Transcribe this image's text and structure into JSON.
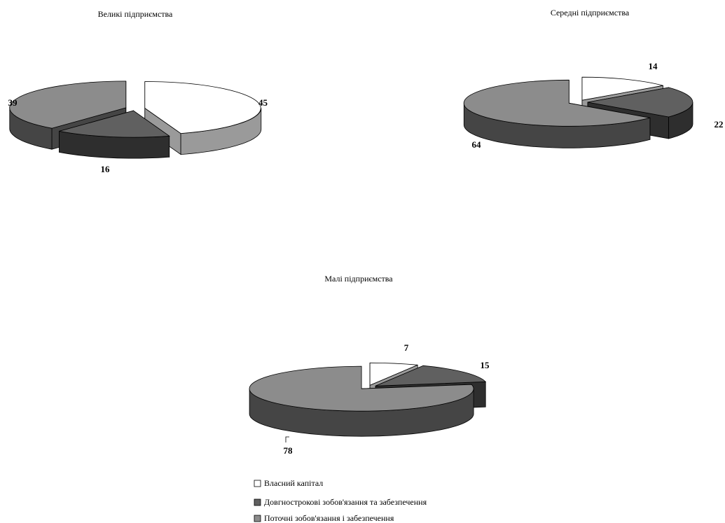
{
  "colors": {
    "equity": "#ffffff",
    "long_term": "#606060",
    "current": "#8c8c8c",
    "outline": "#000000"
  },
  "chart_data": [
    {
      "type": "pie",
      "title": "Великі підприємства",
      "categories": [
        "Власний капітал",
        "Довгнострокові зобов'язання та забезпечення",
        "Поточні зобов'язання і забезпечення"
      ],
      "values": [
        45,
        16,
        39
      ],
      "style": "3d-exploded"
    },
    {
      "type": "pie",
      "title": "Середні підприємства",
      "categories": [
        "Власний капітал",
        "Довгнострокові зобов'язання та забезпечення",
        "Поточні зобов'язання і забезпечення"
      ],
      "values": [
        14,
        22,
        64
      ],
      "style": "3d-exploded"
    },
    {
      "type": "pie",
      "title": "Малі підприємства",
      "categories": [
        "Власний капітал",
        "Довгнострокові зобов'язання та забезпечення",
        "Поточні зобов'язання і забезпечення"
      ],
      "values": [
        7,
        15,
        78
      ],
      "style": "3d-exploded"
    }
  ],
  "legend": {
    "position": "bottom-center",
    "items": [
      {
        "label": "Власний капітал",
        "color_key": "equity"
      },
      {
        "label": "Довгнострокові зобов'язання та забезпечення",
        "color_key": "long_term"
      },
      {
        "label": "Поточні зобов'язання і забезпечення",
        "color_key": "current"
      }
    ]
  }
}
